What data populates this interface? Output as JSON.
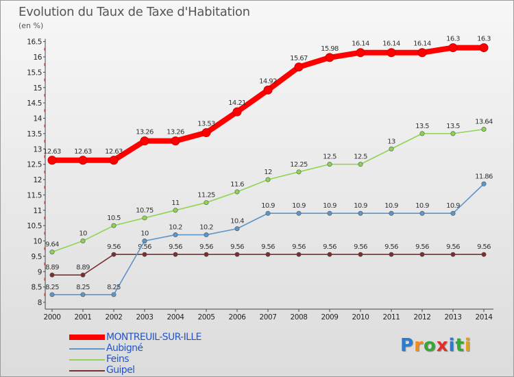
{
  "title": "Evolution du Taux de Taxe d'Habitation",
  "subtitle": "(en %)",
  "logo": "Proxiti",
  "chart_data": {
    "type": "line",
    "title": "Evolution du Taux de Taxe d'Habitation",
    "ylabel": "(en %)",
    "xlabel": "",
    "x": [
      "2000",
      "2001",
      "2002",
      "2003",
      "2004",
      "2005",
      "2006",
      "2007",
      "2008",
      "2009",
      "2010",
      "2011",
      "2012",
      "2013",
      "2014"
    ],
    "ylim": [
      8,
      16.5
    ],
    "yticks": [
      "8",
      "8.5",
      "9",
      "9.5",
      "10",
      "10.5",
      "11",
      "11.5",
      "12",
      "12.5",
      "13",
      "13.5",
      "14",
      "14.5",
      "15",
      "15.5",
      "16",
      "16.5"
    ],
    "legend": "bottom-left",
    "grid": false,
    "series": [
      {
        "name": "MONTREUIL-SUR-ILLE",
        "color": "#ff0000",
        "values": [
          12.63,
          12.63,
          12.63,
          13.26,
          13.26,
          13.53,
          14.21,
          14.92,
          15.67,
          15.98,
          16.14,
          16.14,
          16.14,
          16.3,
          16.3
        ],
        "labels": [
          "12.63",
          "12.63",
          "12.63",
          "13.26",
          "13.26",
          "13.53",
          "14.21",
          "14.92",
          "15.67",
          "15.98",
          "16.14",
          "16.14",
          "16.14",
          "16.3",
          "16.3"
        ]
      },
      {
        "name": "Aubigné",
        "color": "#5b95c9",
        "values": [
          8.25,
          8.25,
          8.25,
          10,
          10.2,
          10.2,
          10.4,
          10.9,
          10.9,
          10.9,
          10.9,
          10.9,
          10.9,
          10.9,
          11.86
        ],
        "labels": [
          "8.25",
          "8.25",
          "8.25",
          "10",
          "10.2",
          "10.2",
          "10.4",
          "10.9",
          "10.9",
          "10.9",
          "10.9",
          "10.9",
          "10.9",
          "10.9",
          "11.86"
        ]
      },
      {
        "name": "Feins",
        "color": "#8fd450",
        "values": [
          9.64,
          10,
          10.5,
          10.75,
          11,
          11.25,
          11.6,
          12,
          12.25,
          12.5,
          12.5,
          13,
          13.5,
          13.5,
          13.64
        ],
        "labels": [
          "9.64",
          "10",
          "10.5",
          "10.75",
          "11",
          "11.25",
          "11.6",
          "12",
          "12.25",
          "12.5",
          "12.5",
          "13",
          "13.5",
          "13.5",
          "13.64"
        ]
      },
      {
        "name": "Guipel",
        "color": "#7b2e2e",
        "values": [
          8.89,
          8.89,
          9.56,
          9.56,
          9.56,
          9.56,
          9.56,
          9.56,
          9.56,
          9.56,
          9.56,
          9.56,
          9.56,
          9.56,
          9.56
        ],
        "labels": [
          "8.89",
          "8.89",
          "9.56",
          "9.56",
          "9.56",
          "9.56",
          "9.56",
          "9.56",
          "9.56",
          "9.56",
          "9.56",
          "9.56",
          "9.56",
          "9.56",
          "9.56"
        ]
      }
    ]
  }
}
